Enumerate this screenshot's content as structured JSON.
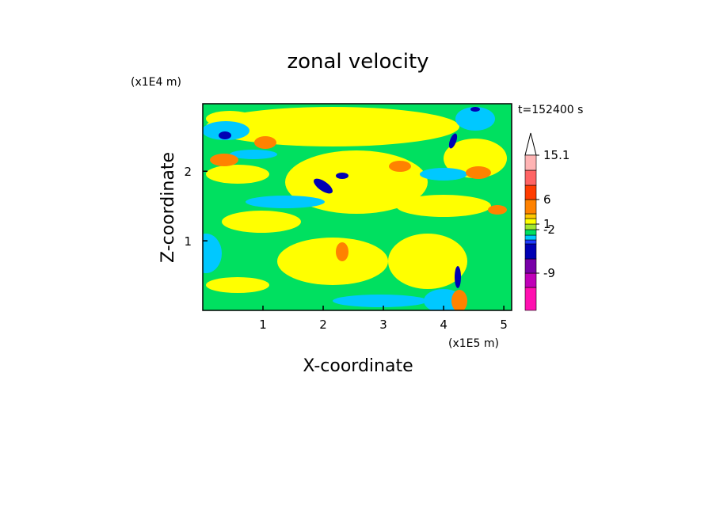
{
  "chart_data": {
    "type": "contour",
    "title": "zonal velocity",
    "x_label": "X-coordinate",
    "y_label": "Z-coordinate",
    "x_unit": "(x1E5 m)",
    "y_unit": "(x1E4 m)",
    "annotation": "t=152400 s",
    "xlim": [
      0,
      5.13
    ],
    "xticks": [
      1,
      2,
      3,
      4,
      5
    ],
    "ylim": [
      0,
      2.97
    ],
    "yticks": [
      1,
      2
    ],
    "colorbar": {
      "colors": [
        "#ff10b0",
        "#c000b8",
        "#7800a8",
        "#0000b4",
        "#1e3cff",
        "#00c8ff",
        "#00e060",
        "#a0e632",
        "#ffff00",
        "#ffc800",
        "#ff8200",
        "#ff3c00",
        "#ff6464",
        "#ffb4b4"
      ],
      "ticks": [
        -9,
        -2,
        1,
        6,
        15.1
      ]
    }
  }
}
